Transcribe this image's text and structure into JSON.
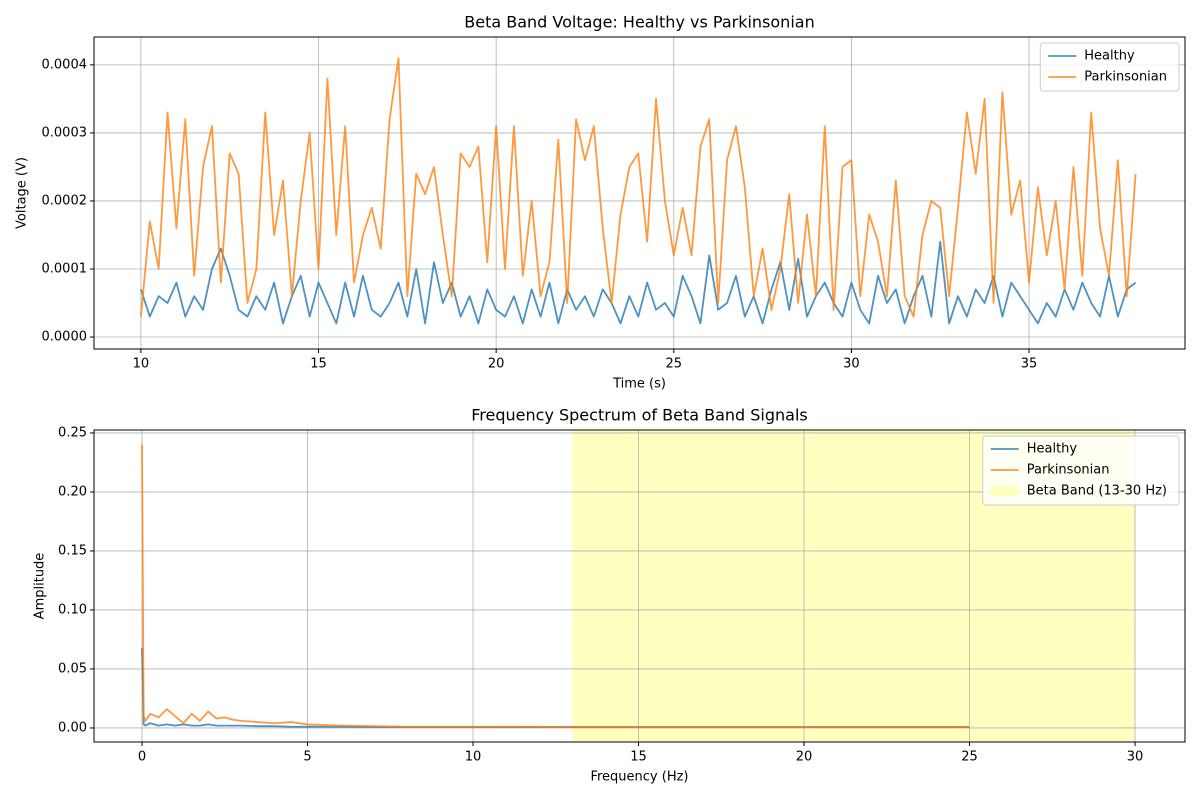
{
  "chart_data": [
    {
      "type": "line",
      "title": "Beta Band Voltage: Healthy vs Parkinsonian",
      "xlabel": "Time (s)",
      "ylabel": "Voltage (V)",
      "x": [
        10,
        10.25,
        10.5,
        10.75,
        11,
        11.25,
        11.5,
        11.75,
        12,
        12.25,
        12.5,
        12.75,
        13,
        13.25,
        13.5,
        13.75,
        14,
        14.25,
        14.5,
        14.75,
        15,
        15.25,
        15.5,
        15.75,
        16,
        16.25,
        16.5,
        16.75,
        17,
        17.25,
        17.5,
        17.75,
        18,
        18.25,
        18.5,
        18.75,
        19,
        19.25,
        19.5,
        19.75,
        20,
        20.25,
        20.5,
        20.75,
        21,
        21.25,
        21.5,
        21.75,
        22,
        22.25,
        22.5,
        22.75,
        23,
        23.25,
        23.5,
        23.75,
        24,
        24.25,
        24.5,
        24.75,
        25,
        25.25,
        25.5,
        25.75,
        26,
        26.25,
        26.5,
        26.75,
        27,
        27.25,
        27.5,
        27.75,
        28,
        28.25,
        28.5,
        28.75,
        29,
        29.25,
        29.5,
        29.75,
        30,
        30.25,
        30.5,
        30.75,
        31,
        31.25,
        31.5,
        31.75,
        32,
        32.25,
        32.5,
        32.75,
        33,
        33.25,
        33.5,
        33.75,
        34,
        34.25,
        34.5,
        34.75,
        35,
        35.25,
        35.5,
        35.75,
        36,
        36.25,
        36.5,
        36.75,
        37,
        37.25,
        37.5,
        37.75,
        38
      ],
      "series": [
        {
          "name": "Healthy",
          "color": "#1f77b4",
          "values": [
            7e-05,
            3e-05,
            6e-05,
            5e-05,
            8e-05,
            3e-05,
            6e-05,
            4e-05,
            0.0001,
            0.00013,
            9e-05,
            4e-05,
            3e-05,
            6e-05,
            4e-05,
            8e-05,
            2e-05,
            6e-05,
            9e-05,
            3e-05,
            8e-05,
            5e-05,
            2e-05,
            8e-05,
            3e-05,
            9e-05,
            4e-05,
            3e-05,
            5e-05,
            8e-05,
            3e-05,
            0.0001,
            2e-05,
            0.00011,
            5e-05,
            8e-05,
            3e-05,
            6e-05,
            2e-05,
            7e-05,
            4e-05,
            3e-05,
            6e-05,
            2e-05,
            7e-05,
            3e-05,
            8e-05,
            2e-05,
            7e-05,
            4e-05,
            6e-05,
            3e-05,
            7e-05,
            5e-05,
            2e-05,
            6e-05,
            3e-05,
            8e-05,
            4e-05,
            5e-05,
            3e-05,
            9e-05,
            6e-05,
            2e-05,
            0.00012,
            4e-05,
            5e-05,
            9e-05,
            3e-05,
            6e-05,
            2e-05,
            7e-05,
            0.00011,
            4e-05,
            0.000115,
            3e-05,
            6e-05,
            8e-05,
            5e-05,
            3e-05,
            8e-05,
            4e-05,
            2e-05,
            9e-05,
            5e-05,
            7e-05,
            2e-05,
            6e-05,
            9e-05,
            3e-05,
            0.00014,
            2e-05,
            6e-05,
            3e-05,
            7e-05,
            5e-05,
            9e-05,
            3e-05,
            8e-05,
            6e-05,
            4e-05,
            2e-05,
            5e-05,
            3e-05,
            7e-05,
            4e-05,
            8e-05,
            5e-05,
            3e-05,
            9e-05,
            3e-05,
            7e-05,
            8e-05
          ]
        },
        {
          "name": "Parkinsonian",
          "color": "#ff7f0e",
          "values": [
            3e-05,
            0.00017,
            0.0001,
            0.00033,
            0.00016,
            0.00032,
            9e-05,
            0.00025,
            0.00031,
            8e-05,
            0.00027,
            0.00024,
            5e-05,
            0.0001,
            0.00033,
            0.00015,
            0.00023,
            6e-05,
            0.0002,
            0.0003,
            0.0001,
            0.00038,
            0.00015,
            0.00031,
            8e-05,
            0.00015,
            0.00019,
            0.00013,
            0.00032,
            0.00041,
            6e-05,
            0.00024,
            0.00021,
            0.00025,
            0.00015,
            6e-05,
            0.00027,
            0.00025,
            0.00028,
            0.00011,
            0.00031,
            0.0001,
            0.00031,
            9e-05,
            0.0002,
            6e-05,
            0.00011,
            0.00029,
            5e-05,
            0.00032,
            0.00026,
            0.00031,
            0.00016,
            5e-05,
            0.00018,
            0.00025,
            0.00027,
            0.00014,
            0.00035,
            0.0002,
            0.00012,
            0.00019,
            0.00012,
            0.00028,
            0.00032,
            5e-05,
            0.00026,
            0.00031,
            0.00022,
            6e-05,
            0.00013,
            4e-05,
            0.0001,
            0.00021,
            5e-05,
            0.00018,
            6e-05,
            0.00031,
            4e-05,
            0.00025,
            0.00026,
            6e-05,
            0.00018,
            0.00014,
            6e-05,
            0.00023,
            6e-05,
            3e-05,
            0.00015,
            0.0002,
            0.00019,
            6e-05,
            0.00019,
            0.00033,
            0.00024,
            0.00035,
            5e-05,
            0.00036,
            0.00018,
            0.00023,
            8e-05,
            0.00022,
            0.00012,
            0.0002,
            7e-05,
            0.00025,
            9e-05,
            0.00033,
            0.00016,
            9e-05,
            0.00026,
            6e-05,
            0.00024
          ]
        }
      ],
      "xlim": [
        8.68,
        39.39
      ],
      "xticks": [
        10,
        15,
        20,
        25,
        30,
        35
      ],
      "ylim": [
        -1.76e-05,
        0.000441
      ],
      "yticks": [
        {
          "value": 0,
          "label": "0.0000"
        },
        0.0001,
        0.0002,
        0.0003,
        0.0004
      ],
      "grid": true,
      "legend": "upper right"
    },
    {
      "type": "line",
      "title": "Frequency Spectrum of Beta Band Signals",
      "xlabel": "Frequency (Hz)",
      "ylabel": "Amplitude",
      "x": [
        0,
        0.05,
        0.1,
        0.25,
        0.5,
        0.75,
        1,
        1.25,
        1.5,
        1.75,
        2,
        2.25,
        2.5,
        2.75,
        3,
        3.5,
        4,
        4.5,
        5,
        6,
        7,
        8,
        10,
        15,
        20,
        25
      ],
      "series": [
        {
          "name": "Healthy",
          "color": "#1f77b4",
          "values": [
            0.068,
            0.003,
            0.002,
            0.004,
            0.002,
            0.003,
            0.002,
            0.003,
            0.002,
            0.002,
            0.003,
            0.002,
            0.002,
            0.002,
            0.002,
            0.0015,
            0.0015,
            0.001,
            0.001,
            0.001,
            0.0008,
            0.0008,
            0.0008,
            0.0008,
            0.0008,
            0.0008
          ]
        },
        {
          "name": "Parkinsonian",
          "color": "#ff7f0e",
          "values": [
            0.24,
            0.01,
            0.006,
            0.012,
            0.009,
            0.016,
            0.01,
            0.004,
            0.012,
            0.006,
            0.014,
            0.008,
            0.009,
            0.007,
            0.006,
            0.005,
            0.004,
            0.005,
            0.003,
            0.002,
            0.0015,
            0.001,
            0.001,
            0.0008,
            0.0008,
            0.0008
          ]
        }
      ],
      "shaded_region": {
        "name": "Beta Band (13-30 Hz)",
        "range": [
          13,
          30
        ],
        "color": "#ffffc0"
      },
      "xlim": [
        -1.45,
        31.51
      ],
      "xticks": [
        0,
        5,
        10,
        15,
        20,
        25,
        30
      ],
      "ylim": [
        -0.0119,
        0.2525
      ],
      "yticks": [
        {
          "value": 0,
          "label": "0.00"
        },
        0.05,
        {
          "value": 0.1,
          "label": "0.10"
        },
        0.15,
        {
          "value": 0.2,
          "label": "0.20"
        },
        0.25
      ],
      "grid": true,
      "legend": "upper right"
    }
  ]
}
